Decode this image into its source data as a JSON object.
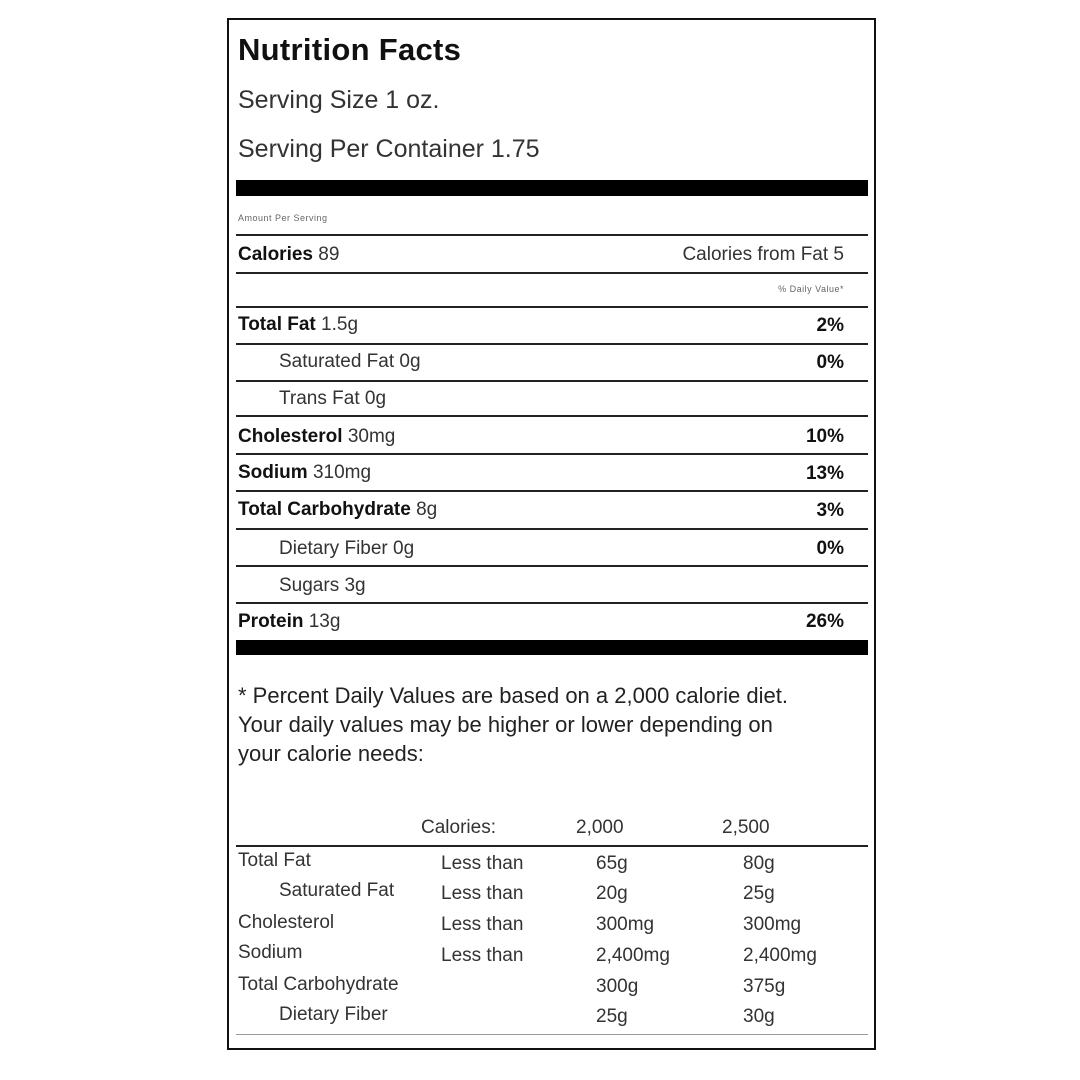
{
  "label": {
    "title": "Nutrition Facts",
    "serving_size": "Serving Size 1 oz.",
    "servings_per_container": "Serving Per Container 1.75",
    "amount_per_serving": "Amount Per Serving",
    "calories_label": "Calories",
    "calories_value": "89",
    "calories_from_fat": "Calories from Fat 5",
    "daily_value_header": "% Daily Value*"
  },
  "nutrients": [
    {
      "name": "Total Fat",
      "amount": "1.5g",
      "dv": "2%"
    },
    {
      "name": "Saturated Fat",
      "amount": "0g",
      "dv": "0%"
    },
    {
      "name": "Trans Fat",
      "amount": "0g",
      "dv": ""
    },
    {
      "name": "Cholesterol",
      "amount": "30mg",
      "dv": "10%"
    },
    {
      "name": "Sodium",
      "amount": "310mg",
      "dv": "13%"
    },
    {
      "name": "Total Carbohydrate",
      "amount": "8g",
      "dv": "3%"
    },
    {
      "name": "Dietary Fiber",
      "amount": "0g",
      "dv": "0%"
    },
    {
      "name": "Sugars",
      "amount": "3g",
      "dv": ""
    },
    {
      "name": "Protein",
      "amount": "13g",
      "dv": "26%"
    }
  ],
  "footnote": [
    "* Percent Daily Values are based on a 2,000 calorie diet.",
    "Your daily values may be higher or lower depending on",
    "your calorie needs:"
  ],
  "reference": {
    "header": {
      "label": "Calories:",
      "col1": "2,000",
      "col2": "2,500"
    },
    "rows": [
      {
        "name": "Total Fat",
        "qualifier": "Less than",
        "col1": "65g",
        "col2": "80g"
      },
      {
        "name": "Saturated Fat",
        "qualifier": "Less than",
        "col1": "20g",
        "col2": "25g"
      },
      {
        "name": "Cholesterol",
        "qualifier": "Less than",
        "col1": "300mg",
        "col2": "300mg"
      },
      {
        "name": "Sodium",
        "qualifier": "Less than",
        "col1": "2,400mg",
        "col2": "2,400mg"
      },
      {
        "name": "Total Carbohydrate",
        "qualifier": "",
        "col1": "300g",
        "col2": "375g"
      },
      {
        "name": "Dietary Fiber",
        "qualifier": "",
        "col1": "25g",
        "col2": "30g"
      }
    ]
  }
}
